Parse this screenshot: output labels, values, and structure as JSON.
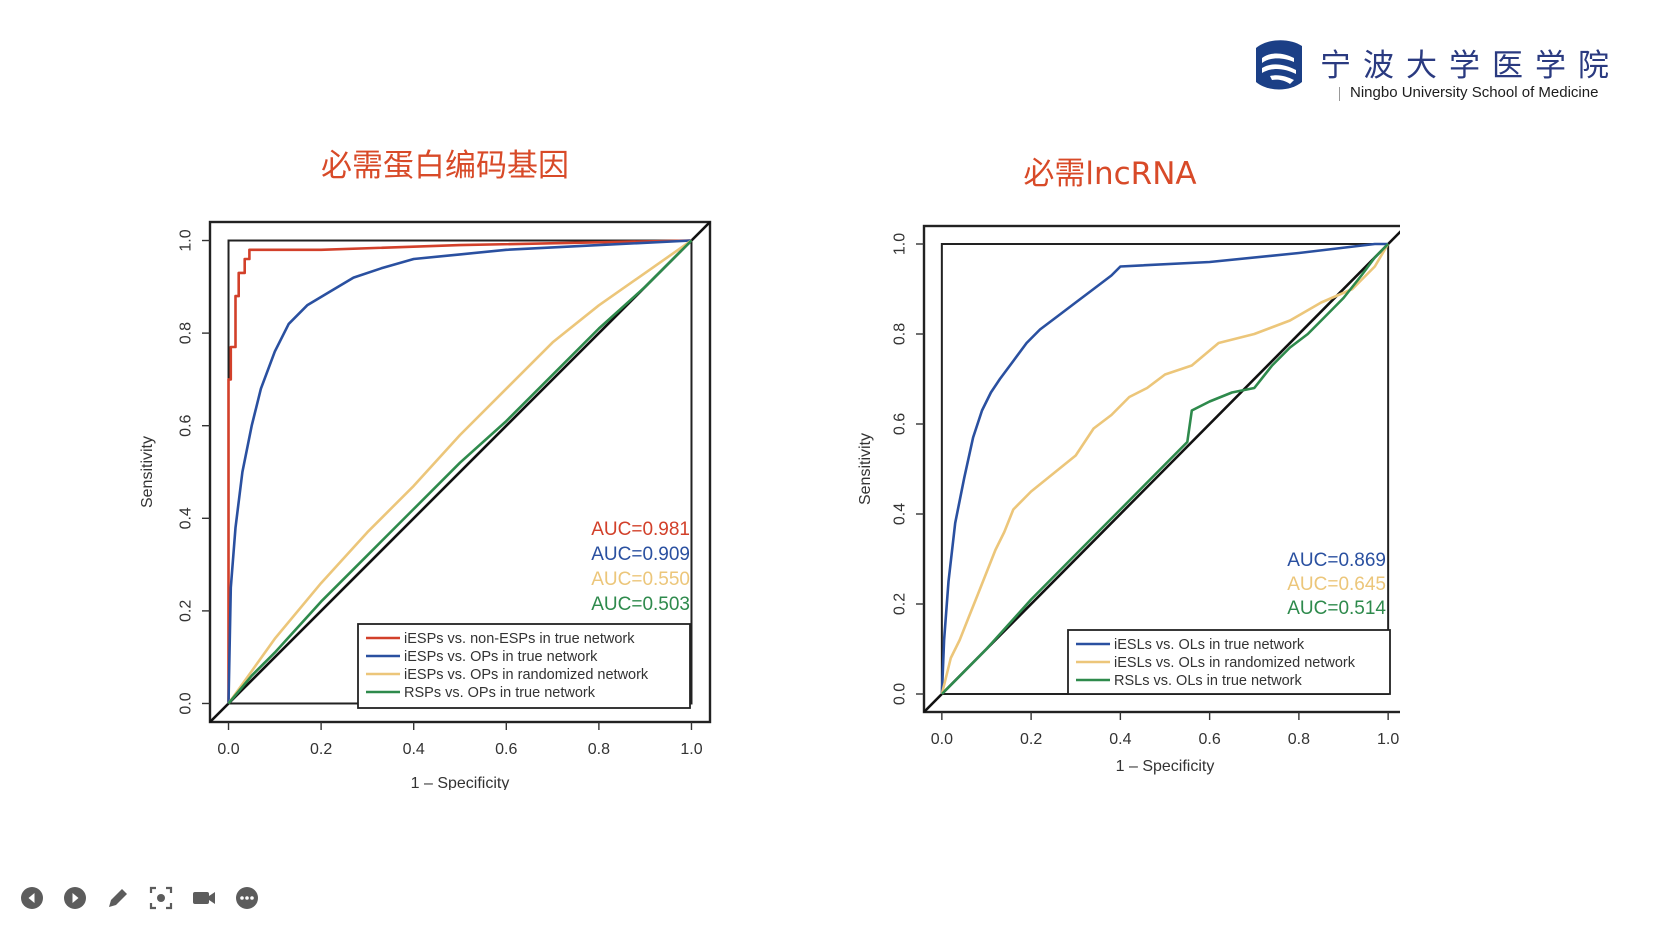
{
  "logo": {
    "chinese_name": "宁波大学医学院",
    "english_name": "Ningbo University School of Medicine"
  },
  "colors": {
    "title": "#d84a28",
    "red": "#d2402a",
    "blue": "#2a50a0",
    "yellow": "#ecc67a",
    "green": "#2e8a4c",
    "black": "#111111"
  },
  "chart_data": [
    {
      "type": "line",
      "title": "必需蛋白编码基因",
      "xlabel": "1 – Specificity",
      "ylabel": "Sensitivity",
      "xlim": [
        -0.04,
        1.04
      ],
      "ylim": [
        -0.04,
        1.04
      ],
      "xticks": [
        "0.0",
        "0.2",
        "0.4",
        "0.6",
        "0.8",
        "1.0"
      ],
      "yticks": [
        "0.0",
        "0.2",
        "0.4",
        "0.6",
        "0.8",
        "1.0"
      ],
      "auc_labels": [
        {
          "text": "AUC=0.981",
          "color": "red"
        },
        {
          "text": "AUC=0.909",
          "color": "blue"
        },
        {
          "text": "AUC=0.550",
          "color": "yellow"
        },
        {
          "text": "AUC=0.503",
          "color": "green"
        }
      ],
      "legend": [
        {
          "label": "iESPs vs. non-ESPs in true network",
          "color": "red"
        },
        {
          "label": "iESPs vs. OPs in true network",
          "color": "blue"
        },
        {
          "label": "iESPs vs. OPs in randomized network",
          "color": "yellow"
        },
        {
          "label": "RSPs vs. OPs in true network",
          "color": "green"
        }
      ],
      "series": [
        {
          "name": "iESPs vs. non-ESPs in true network",
          "color": "red",
          "x": [
            0,
            0,
            0.005,
            0.005,
            0.015,
            0.015,
            0.022,
            0.022,
            0.035,
            0.035,
            0.045,
            0.045,
            0.2,
            0.5,
            1.0
          ],
          "y": [
            0,
            0.7,
            0.7,
            0.77,
            0.77,
            0.88,
            0.88,
            0.93,
            0.93,
            0.96,
            0.96,
            0.98,
            0.98,
            0.99,
            1.0
          ]
        },
        {
          "name": "iESPs vs. OPs in true network",
          "color": "blue",
          "x": [
            0,
            0.005,
            0.015,
            0.03,
            0.05,
            0.07,
            0.1,
            0.13,
            0.17,
            0.22,
            0.27,
            0.33,
            0.4,
            0.5,
            0.6,
            0.8,
            1.0
          ],
          "y": [
            0,
            0.25,
            0.38,
            0.5,
            0.6,
            0.68,
            0.76,
            0.82,
            0.86,
            0.89,
            0.92,
            0.94,
            0.96,
            0.97,
            0.98,
            0.99,
            1.0
          ]
        },
        {
          "name": "iESPs vs. OPs in randomized network",
          "color": "yellow",
          "x": [
            0,
            0.05,
            0.1,
            0.2,
            0.3,
            0.4,
            0.5,
            0.6,
            0.7,
            0.8,
            0.9,
            1.0
          ],
          "y": [
            0,
            0.07,
            0.14,
            0.26,
            0.37,
            0.47,
            0.58,
            0.68,
            0.78,
            0.86,
            0.93,
            1.0
          ]
        },
        {
          "name": "RSPs vs. OPs in true network",
          "color": "green",
          "x": [
            0,
            0.05,
            0.1,
            0.2,
            0.3,
            0.4,
            0.5,
            0.6,
            0.7,
            0.8,
            0.9,
            1.0
          ],
          "y": [
            0,
            0.06,
            0.11,
            0.22,
            0.32,
            0.42,
            0.52,
            0.61,
            0.71,
            0.81,
            0.9,
            1.0
          ]
        }
      ]
    },
    {
      "type": "line",
      "title": "必需lncRNA",
      "xlabel": "1 – Specificity",
      "ylabel": "Sensitivity",
      "xlim": [
        -0.04,
        1.04
      ],
      "ylim": [
        -0.04,
        1.04
      ],
      "xticks": [
        "0.0",
        "0.2",
        "0.4",
        "0.6",
        "0.8",
        "1.0"
      ],
      "yticks": [
        "0.0",
        "0.2",
        "0.4",
        "0.6",
        "0.8",
        "1.0"
      ],
      "auc_labels": [
        {
          "text": "AUC=0.869",
          "color": "blue"
        },
        {
          "text": "AUC=0.645",
          "color": "yellow"
        },
        {
          "text": "AUC=0.514",
          "color": "green"
        }
      ],
      "legend": [
        {
          "label": "iESLs vs. OLs in true network",
          "color": "blue"
        },
        {
          "label": "iESLs vs. OLs in randomized network",
          "color": "yellow"
        },
        {
          "label": "RSLs vs. OLs in true network",
          "color": "green"
        }
      ],
      "series": [
        {
          "name": "iESLs vs. OLs in true network",
          "color": "blue",
          "x": [
            0,
            0.005,
            0.015,
            0.03,
            0.05,
            0.07,
            0.09,
            0.11,
            0.13,
            0.16,
            0.19,
            0.22,
            0.26,
            0.3,
            0.34,
            0.38,
            0.4,
            0.6,
            0.8,
            0.97,
            1.0
          ],
          "y": [
            0,
            0.12,
            0.25,
            0.38,
            0.48,
            0.57,
            0.63,
            0.67,
            0.7,
            0.74,
            0.78,
            0.81,
            0.84,
            0.87,
            0.9,
            0.93,
            0.95,
            0.96,
            0.98,
            1.0,
            1.0
          ]
        },
        {
          "name": "iESLs vs. OLs in randomized network",
          "color": "yellow",
          "x": [
            0,
            0.02,
            0.04,
            0.06,
            0.08,
            0.1,
            0.12,
            0.14,
            0.16,
            0.2,
            0.25,
            0.3,
            0.34,
            0.38,
            0.42,
            0.46,
            0.5,
            0.56,
            0.62,
            0.7,
            0.78,
            0.85,
            0.92,
            0.97,
            1.0
          ],
          "y": [
            0,
            0.08,
            0.12,
            0.17,
            0.22,
            0.27,
            0.32,
            0.36,
            0.41,
            0.45,
            0.49,
            0.53,
            0.59,
            0.62,
            0.66,
            0.68,
            0.71,
            0.73,
            0.78,
            0.8,
            0.83,
            0.87,
            0.9,
            0.95,
            1.0
          ]
        },
        {
          "name": "RSLs vs. OLs in true network",
          "color": "green",
          "x": [
            0,
            0.05,
            0.1,
            0.2,
            0.3,
            0.4,
            0.5,
            0.55,
            0.56,
            0.6,
            0.65,
            0.7,
            0.74,
            0.78,
            0.82,
            0.86,
            0.9,
            0.94,
            0.97,
            1.0
          ],
          "y": [
            0,
            0.05,
            0.1,
            0.21,
            0.31,
            0.41,
            0.51,
            0.56,
            0.63,
            0.65,
            0.67,
            0.68,
            0.73,
            0.77,
            0.8,
            0.84,
            0.88,
            0.93,
            0.97,
            1.0
          ]
        }
      ]
    }
  ],
  "toolbar": [
    {
      "name": "previous-slide-button",
      "icon": "prev-icon"
    },
    {
      "name": "next-slide-button",
      "icon": "next-icon"
    },
    {
      "name": "pen-tool-button",
      "icon": "pencil-icon"
    },
    {
      "name": "screenshot-button",
      "icon": "capture-icon"
    },
    {
      "name": "camera-button",
      "icon": "video-camera-icon"
    },
    {
      "name": "more-button",
      "icon": "more-icon"
    }
  ]
}
